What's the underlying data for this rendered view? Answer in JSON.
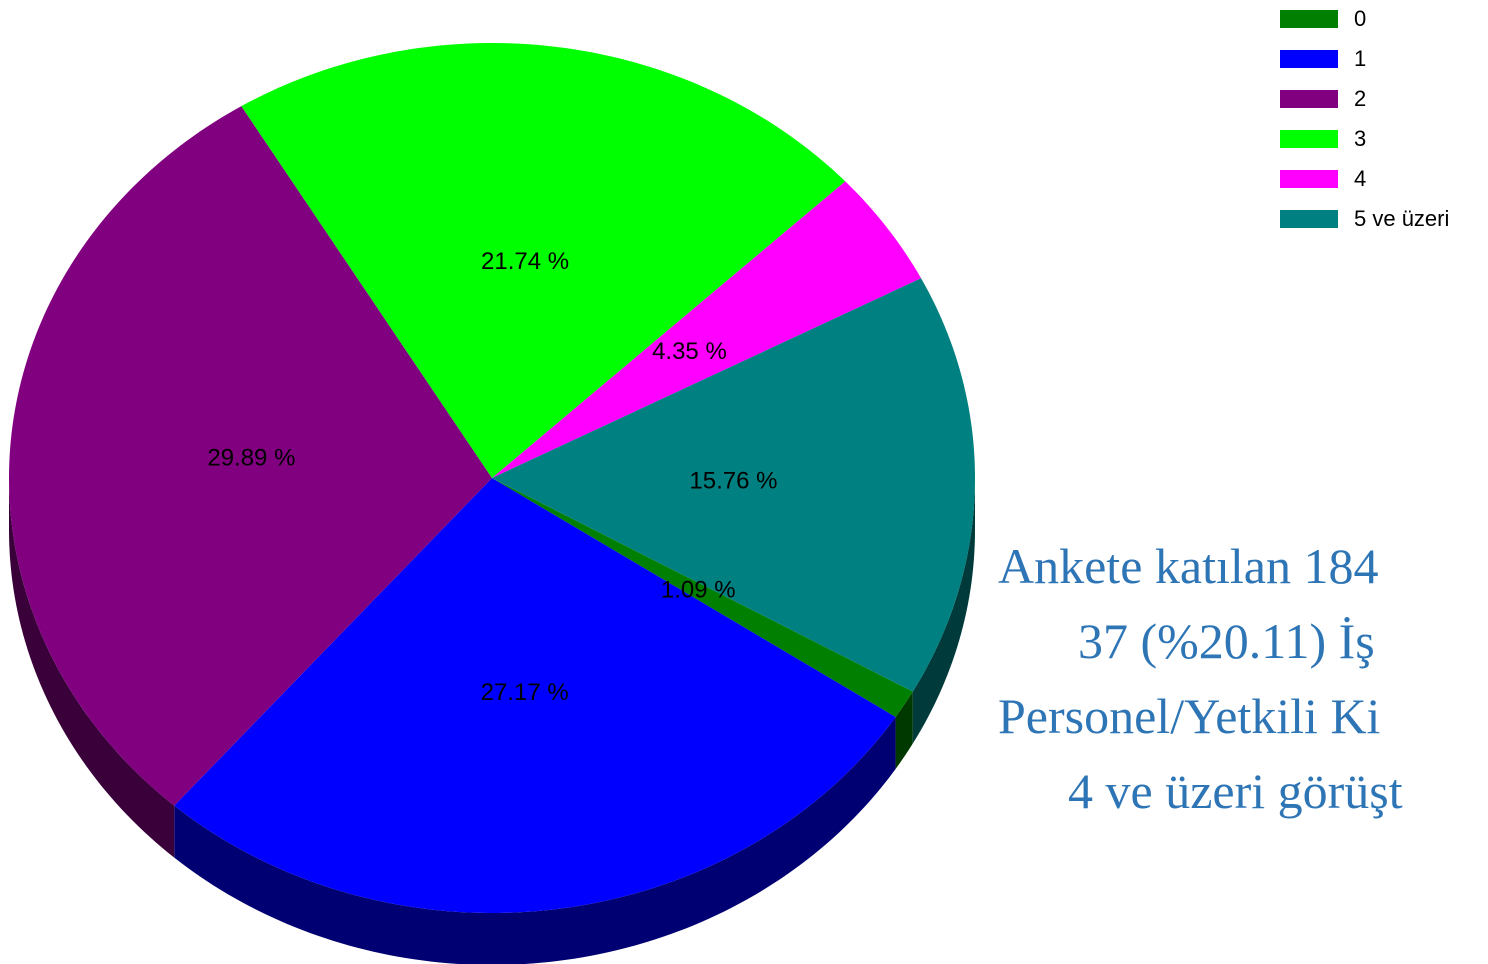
{
  "chart_data": {
    "type": "pie",
    "categories": [
      "0",
      "1",
      "2",
      "3",
      "4",
      "5 ve üzeri"
    ],
    "values": [
      1.09,
      27.17,
      29.89,
      21.74,
      4.35,
      15.76
    ],
    "value_labels": [
      "1.09 %",
      "27.17 %",
      "29.89 %",
      "21.74 %",
      "4.35 %",
      "15.76 %"
    ],
    "colors": [
      "#007f00",
      "#0000ff",
      "#800080",
      "#00ff00",
      "#ff00ff",
      "#008080"
    ],
    "legend": "top-right",
    "annotation": [
      "Ankete katılan 184",
      "37 (%20.11) İş",
      "Personel/Yetkili Ki",
      "4 ve üzeri görüşt"
    ]
  }
}
